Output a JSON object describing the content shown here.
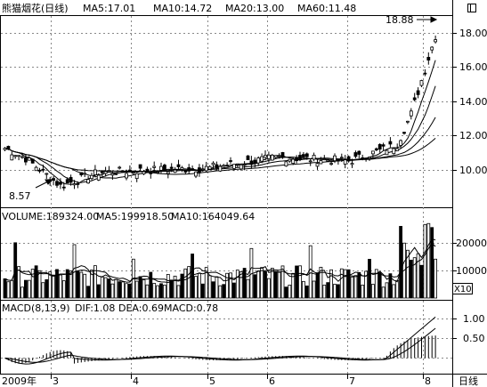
{
  "main_header": {
    "title": "熊猫烟花(日线)",
    "ma5": "MA5:17.01",
    "ma10": "MA10:14.72",
    "ma20": "MA20:13.00",
    "ma60": "MA60:11.48"
  },
  "price_axis": [
    "18.00",
    "16.00",
    "14.00",
    "12.00",
    "10.00"
  ],
  "annotations": {
    "high_label": "18.88",
    "low_label": "8.57"
  },
  "volume_header": {
    "volume": "VOLUME:189324.00",
    "ma5": "MA5:199918.50",
    "ma10": "MA10:164049.64"
  },
  "volume_axis": [
    "20000",
    "10000"
  ],
  "volume_unit": "X10",
  "macd_header": {
    "title": "MACD(8,13,9)",
    "dif": "DIF:1.08",
    "dea": "DEA:0.69",
    "macd": "MACD:0.78"
  },
  "macd_axis": [
    "1.00",
    "0.50"
  ],
  "time_axis": [
    "2009年",
    "3",
    "4",
    "5",
    "6",
    "7",
    "8"
  ],
  "period_button": "日线",
  "colors": {
    "background": "#ffffff",
    "line": "#000000",
    "grid": "#888888"
  },
  "icons": {
    "window_button": "square-icon"
  }
}
